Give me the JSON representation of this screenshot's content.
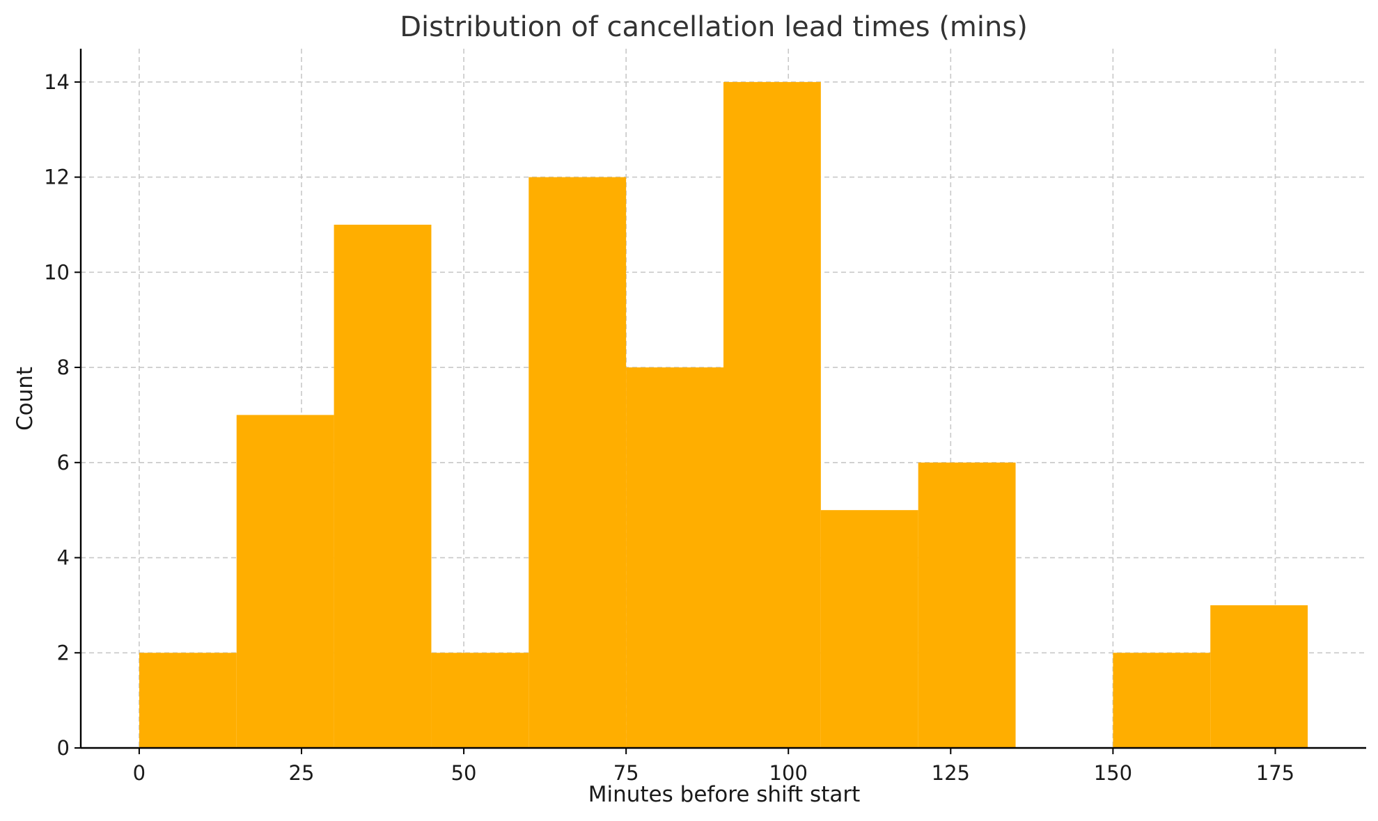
{
  "chart_data": {
    "type": "bar",
    "title": "Distribution of cancellation lead times (mins)",
    "xlabel": "Minutes before shift start",
    "ylabel": "Count",
    "bin_edges": [
      0,
      15,
      30,
      45,
      60,
      75,
      90,
      105,
      120,
      135,
      150,
      165,
      180
    ],
    "values": [
      2,
      7,
      11,
      2,
      12,
      8,
      14,
      5,
      6,
      0,
      2,
      3
    ],
    "xlim": [
      -9,
      189
    ],
    "ylim": [
      0,
      14.7
    ],
    "x_ticks": [
      0,
      25,
      50,
      75,
      100,
      125,
      150,
      175
    ],
    "y_ticks": [
      0,
      2,
      4,
      6,
      8,
      10,
      12,
      14
    ],
    "grid": true,
    "bar_color": "#FFAE00"
  }
}
